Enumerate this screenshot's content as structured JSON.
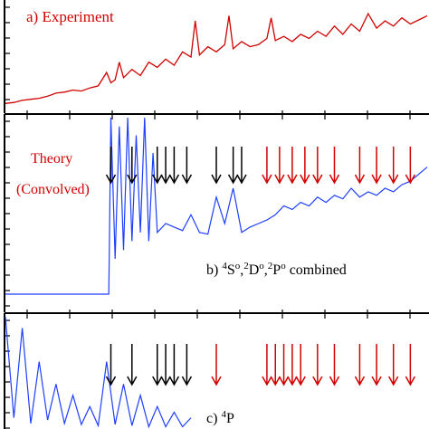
{
  "panels": {
    "a": {
      "label": "a) Experiment",
      "color": "#d10000"
    },
    "b": {
      "theory_label_1": "Theory",
      "theory_label_2": "(Convolved)",
      "label_prefix": "b) ",
      "label_terms": [
        {
          "sup": "4",
          "base": "S",
          "supo": "o"
        },
        {
          "sup": "2",
          "base": "D",
          "supo": "o"
        },
        {
          "sup": "2",
          "base": "P",
          "supo": "o"
        }
      ],
      "label_suffix": " combined",
      "color": "#1f3fff"
    },
    "c": {
      "label_prefix": "c) ",
      "label_sup": "4",
      "label_base": "P",
      "color": "#1f3fff"
    }
  },
  "colors": {
    "experiment": "#d10000",
    "theory": "#1f3fff",
    "arrow_black": "#000000",
    "arrow_red": "#d10000",
    "axis": "#000000"
  },
  "chart_data": [
    {
      "type": "line",
      "panel": "a",
      "series": [
        {
          "name": "Experiment",
          "x": [
            0,
            0.02,
            0.04,
            0.06,
            0.08,
            0.1,
            0.12,
            0.14,
            0.16,
            0.18,
            0.2,
            0.22,
            0.24,
            0.25,
            0.26,
            0.27,
            0.28,
            0.3,
            0.32,
            0.34,
            0.36,
            0.38,
            0.4,
            0.42,
            0.44,
            0.45,
            0.46,
            0.48,
            0.5,
            0.52,
            0.53,
            0.54,
            0.56,
            0.58,
            0.6,
            0.62,
            0.63,
            0.64,
            0.66,
            0.68,
            0.7,
            0.72,
            0.74,
            0.76,
            0.78,
            0.8,
            0.82,
            0.84,
            0.86,
            0.88,
            0.9,
            0.92,
            0.94,
            0.96,
            0.98,
            1.0
          ],
          "y": [
            0.05,
            0.06,
            0.08,
            0.09,
            0.1,
            0.12,
            0.15,
            0.16,
            0.18,
            0.17,
            0.2,
            0.22,
            0.35,
            0.25,
            0.28,
            0.45,
            0.3,
            0.38,
            0.32,
            0.45,
            0.4,
            0.48,
            0.42,
            0.55,
            0.5,
            0.85,
            0.52,
            0.6,
            0.55,
            0.62,
            0.9,
            0.58,
            0.65,
            0.6,
            0.62,
            0.68,
            0.88,
            0.66,
            0.7,
            0.65,
            0.72,
            0.68,
            0.75,
            0.7,
            0.8,
            0.72,
            0.82,
            0.75,
            0.92,
            0.78,
            0.85,
            0.8,
            0.88,
            0.82,
            0.86,
            0.9
          ]
        }
      ]
    },
    {
      "type": "line",
      "panel": "b",
      "series": [
        {
          "name": "4So,2Do,2Po combined",
          "x": [
            0,
            0.1,
            0.2,
            0.245,
            0.25,
            0.26,
            0.27,
            0.28,
            0.29,
            0.3,
            0.31,
            0.32,
            0.33,
            0.34,
            0.35,
            0.36,
            0.38,
            0.4,
            0.42,
            0.44,
            0.46,
            0.48,
            0.5,
            0.52,
            0.54,
            0.56,
            0.58,
            0.6,
            0.62,
            0.64,
            0.66,
            0.68,
            0.7,
            0.72,
            0.74,
            0.76,
            0.78,
            0.8,
            0.82,
            0.84,
            0.86,
            0.88,
            0.9,
            0.92,
            0.94,
            0.96,
            0.98,
            1.0
          ],
          "y": [
            0.0,
            0.0,
            0.0,
            0.0,
            1.0,
            0.2,
            0.95,
            0.25,
            1.0,
            0.3,
            0.9,
            0.35,
            1.0,
            0.3,
            0.8,
            0.35,
            0.4,
            0.38,
            0.36,
            0.45,
            0.35,
            0.34,
            0.55,
            0.4,
            0.6,
            0.35,
            0.38,
            0.4,
            0.42,
            0.45,
            0.5,
            0.48,
            0.52,
            0.5,
            0.55,
            0.52,
            0.56,
            0.54,
            0.6,
            0.55,
            0.58,
            0.56,
            0.6,
            0.58,
            0.62,
            0.64,
            0.68,
            0.72
          ]
        }
      ],
      "arrows_black_x": [
        0.25,
        0.3,
        0.36,
        0.38,
        0.4,
        0.43,
        0.5,
        0.54,
        0.56
      ],
      "arrows_red_x": [
        0.62,
        0.65,
        0.68,
        0.71,
        0.74,
        0.78,
        0.84,
        0.88,
        0.92,
        0.96
      ]
    },
    {
      "type": "line",
      "panel": "c",
      "series": [
        {
          "name": "4P",
          "x": [
            0,
            0.02,
            0.04,
            0.06,
            0.08,
            0.1,
            0.12,
            0.14,
            0.16,
            0.18,
            0.2,
            0.22,
            0.24,
            0.26,
            0.28,
            0.3,
            0.32,
            0.34,
            0.36,
            0.38,
            0.4,
            0.42,
            0.44
          ],
          "y": [
            1.0,
            0.1,
            0.9,
            0.05,
            0.6,
            0.08,
            0.4,
            0.05,
            0.3,
            0.04,
            0.2,
            0.03,
            0.6,
            0.04,
            0.4,
            0.03,
            0.3,
            0.02,
            0.2,
            0.02,
            0.15,
            0.02,
            0.1
          ]
        }
      ],
      "arrows_black_x": [
        0.25,
        0.3,
        0.36,
        0.38,
        0.4,
        0.43
      ],
      "arrows_red_x": [
        0.5,
        0.62,
        0.64,
        0.66,
        0.68,
        0.7,
        0.74,
        0.78,
        0.84,
        0.88,
        0.92,
        0.96
      ]
    }
  ]
}
